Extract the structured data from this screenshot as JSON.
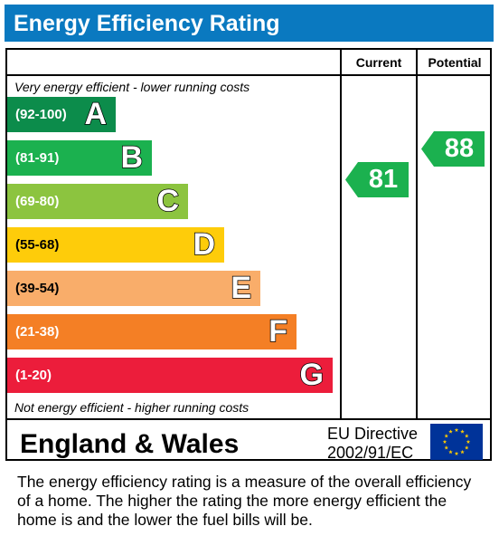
{
  "title": "Energy Efficiency Rating",
  "columns": {
    "current": "Current",
    "potential": "Potential"
  },
  "top_caption": "Very energy efficient - lower running costs",
  "bottom_caption": "Not energy efficient - higher running costs",
  "chart_data": {
    "type": "bar",
    "categories": [
      "A",
      "B",
      "C",
      "D",
      "E",
      "F",
      "G"
    ],
    "bands": [
      {
        "letter": "A",
        "range": "(92-100)",
        "color": "#0c8c4b"
      },
      {
        "letter": "B",
        "range": "(81-91)",
        "color": "#1bb14f"
      },
      {
        "letter": "C",
        "range": "(69-80)",
        "color": "#8cc43f"
      },
      {
        "letter": "D",
        "range": "(55-68)",
        "color": "#fecc0a"
      },
      {
        "letter": "E",
        "range": "(39-54)",
        "color": "#f9ad6a"
      },
      {
        "letter": "F",
        "range": "(21-38)",
        "color": "#f47f25"
      },
      {
        "letter": "G",
        "range": "(1-20)",
        "color": "#ec1d3b"
      }
    ],
    "current": {
      "value": 81,
      "label": "81",
      "band": "B",
      "color": "#1bb14f"
    },
    "potential": {
      "value": 88,
      "label": "88",
      "band": "B",
      "color": "#1bb14f"
    }
  },
  "footer": {
    "region": "England & Wales",
    "directive_line1": "EU Directive",
    "directive_line2": "2002/91/EC",
    "flag_icon": "eu-flag-icon"
  },
  "note": "The energy efficiency rating is a measure of the overall efficiency of a home.  The higher the rating the more energy efficient the home is and the lower the fuel bills will be."
}
